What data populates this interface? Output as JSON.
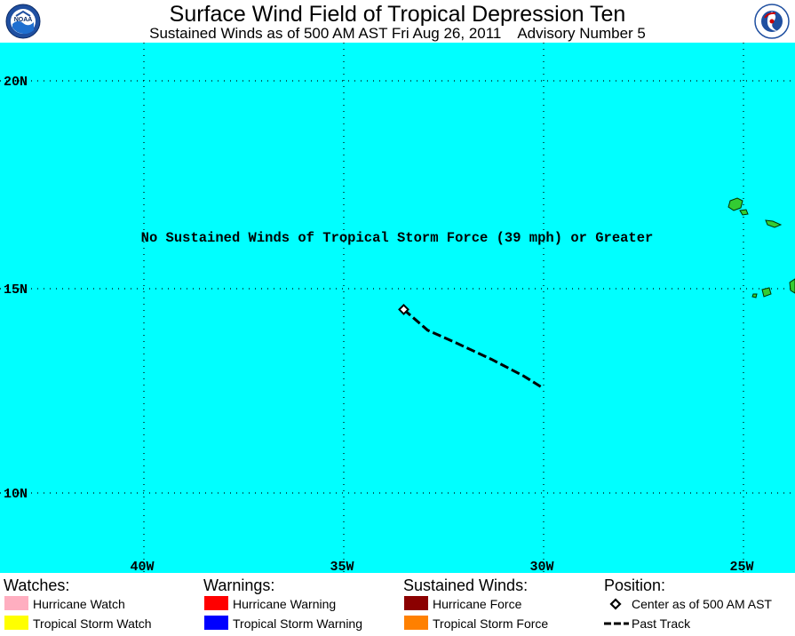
{
  "header": {
    "title": "Surface Wind Field of Tropical Depression Ten",
    "subtitle": "Sustained Winds as of 500 AM AST Fri Aug 26, 2011    Advisory Number 5",
    "logo_left_text": "NOAA",
    "logo_right_text": "NATIONAL WEATHER SERVICE"
  },
  "map": {
    "ocean_color": "#00ffff",
    "land_color": "#33cc33",
    "lat_labels": [
      "20N",
      "15N",
      "10N"
    ],
    "lon_labels": [
      "40W",
      "35W",
      "30W",
      "25W"
    ],
    "message": "No Sustained Winds of Tropical Storm Force (39 mph) or Greater",
    "center_position": {
      "lat": 14.5,
      "lon": -33.5
    },
    "past_track": [
      {
        "lat": 14.5,
        "lon": -33.5
      },
      {
        "lat": 14.0,
        "lon": -32.9
      },
      {
        "lat": 13.7,
        "lon": -32.2
      },
      {
        "lat": 13.3,
        "lon": -31.3
      },
      {
        "lat": 12.9,
        "lon": -30.5
      },
      {
        "lat": 12.6,
        "lon": -30.0
      }
    ]
  },
  "legend": {
    "watches": {
      "heading": "Watches:",
      "items": [
        {
          "label": "Hurricane Watch",
          "color": "#ffaec0"
        },
        {
          "label": "Tropical Storm Watch",
          "color": "#ffff00"
        }
      ]
    },
    "warnings": {
      "heading": "Warnings:",
      "items": [
        {
          "label": "Hurricane Warning",
          "color": "#ff0000"
        },
        {
          "label": "Tropical Storm Warning",
          "color": "#0000ff"
        }
      ]
    },
    "winds": {
      "heading": "Sustained Winds:",
      "items": [
        {
          "label": "Hurricane Force",
          "color": "#8b0000"
        },
        {
          "label": "Tropical Storm Force",
          "color": "#ff8000"
        }
      ]
    },
    "position": {
      "heading": "Position:",
      "items": [
        {
          "label": "Center as of 500 AM AST",
          "symbol": "diamond"
        },
        {
          "label": "Past Track",
          "symbol": "dashed-line"
        }
      ]
    }
  }
}
